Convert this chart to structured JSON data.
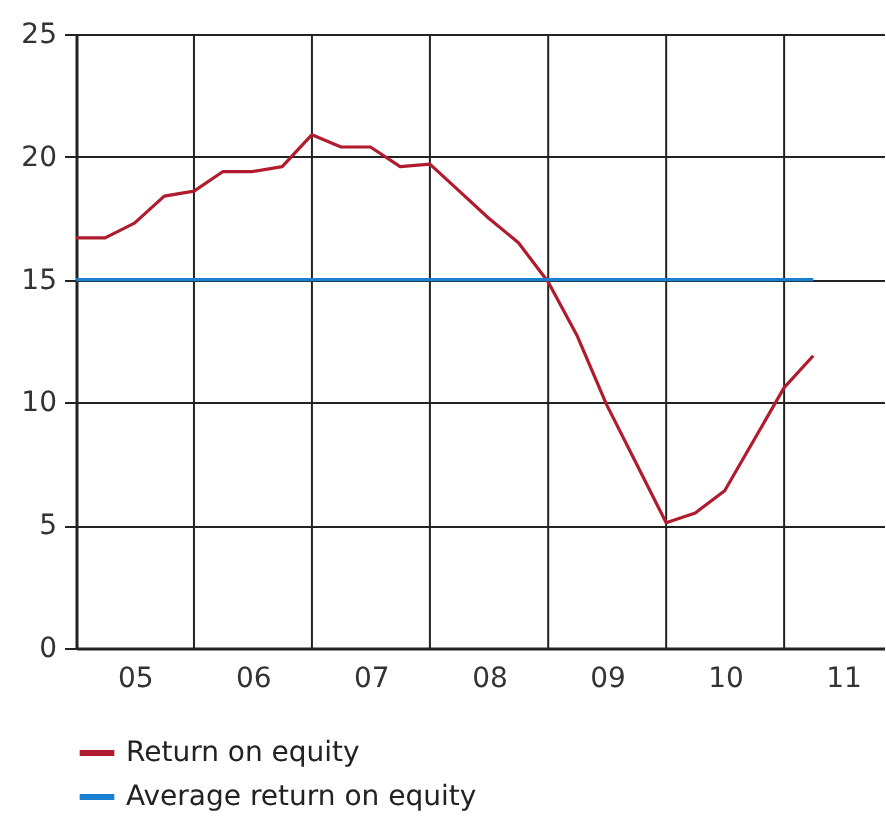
{
  "chart_data": {
    "type": "line",
    "xlim": [
      "2005-01-01",
      "2011-11-06"
    ],
    "xticks": [
      {
        "value": "2005-07-02",
        "label": "05"
      },
      {
        "value": "2006-01-01",
        "label": null
      },
      {
        "value": "2006-07-02",
        "label": "06"
      },
      {
        "value": "2007-01-01",
        "label": null
      },
      {
        "value": "2007-07-02",
        "label": "07"
      },
      {
        "value": "2008-01-01",
        "label": null
      },
      {
        "value": "2008-07-02",
        "label": "08"
      },
      {
        "value": "2009-01-01",
        "label": null
      },
      {
        "value": "2009-07-02",
        "label": "09"
      },
      {
        "value": "2010-01-01",
        "label": null
      },
      {
        "value": "2010-07-02",
        "label": "10"
      },
      {
        "value": "2011-01-01",
        "label": null
      },
      {
        "value": "2011-07-02",
        "label": "11"
      }
    ],
    "ylim": [
      0,
      25
    ],
    "yticks": [
      0,
      5,
      10,
      15,
      20,
      25
    ],
    "grid": true,
    "legend": "bottom",
    "marker": "none",
    "line_style": "solid",
    "series": [
      {
        "name": "Return on equity",
        "color": "#b01c2e",
        "x": [
          "2005-01",
          "2005-04",
          "2005-07",
          "2005-10",
          "2006-01",
          "2006-04",
          "2006-07",
          "2006-10",
          "2007-01",
          "2007-04",
          "2007-07",
          "2007-10",
          "2008-01",
          "2008-04",
          "2008-07",
          "2008-10",
          "2009-01",
          "2009-04",
          "2009-07",
          "2009-10",
          "2010-01",
          "2010-04",
          "2010-07",
          "2010-10",
          "2011-01",
          "2011-04"
        ],
        "values": [
          16.7,
          16.7,
          17.3,
          18.4,
          18.6,
          19.4,
          19.4,
          19.6,
          20.9,
          20.4,
          20.4,
          19.6,
          19.7,
          18.6,
          17.5,
          16.5,
          14.9,
          12.7,
          9.9,
          7.5,
          5.1,
          5.5,
          6.4,
          8.5,
          10.6,
          11.9
        ]
      },
      {
        "name": "Average return on equity",
        "color": "#1a7fcf",
        "x": [
          "2005-01",
          "2011-04"
        ],
        "values": [
          15,
          15
        ]
      }
    ]
  }
}
